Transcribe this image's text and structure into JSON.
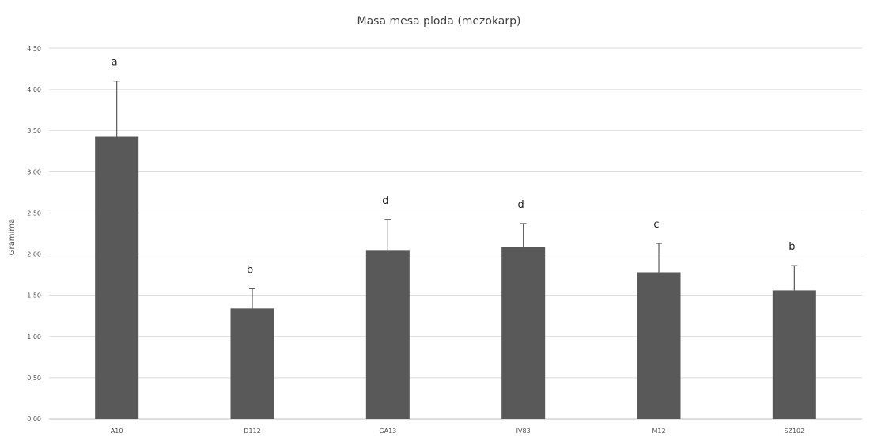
{
  "chart_data": {
    "type": "bar",
    "title": "Masa mesa ploda  (mezokarp)",
    "xlabel": "",
    "ylabel": "Gramima",
    "ylim": [
      0,
      4.5
    ],
    "yticks": [
      "0,00",
      "0,50",
      "1,00",
      "1,50",
      "2,00",
      "2,50",
      "3,00",
      "3,50",
      "4,00",
      "4,50"
    ],
    "categories": [
      "A10",
      "D112",
      "GA13",
      "IV83",
      "M12",
      "SZ102"
    ],
    "values": [
      3.43,
      1.34,
      2.05,
      2.09,
      1.78,
      1.56
    ],
    "errors": [
      0.67,
      0.24,
      0.37,
      0.28,
      0.35,
      0.3
    ],
    "significance": [
      "a",
      "b",
      "d",
      "d",
      "c",
      "b"
    ],
    "bar_color": "#595959",
    "grid": true,
    "legend": "none"
  }
}
